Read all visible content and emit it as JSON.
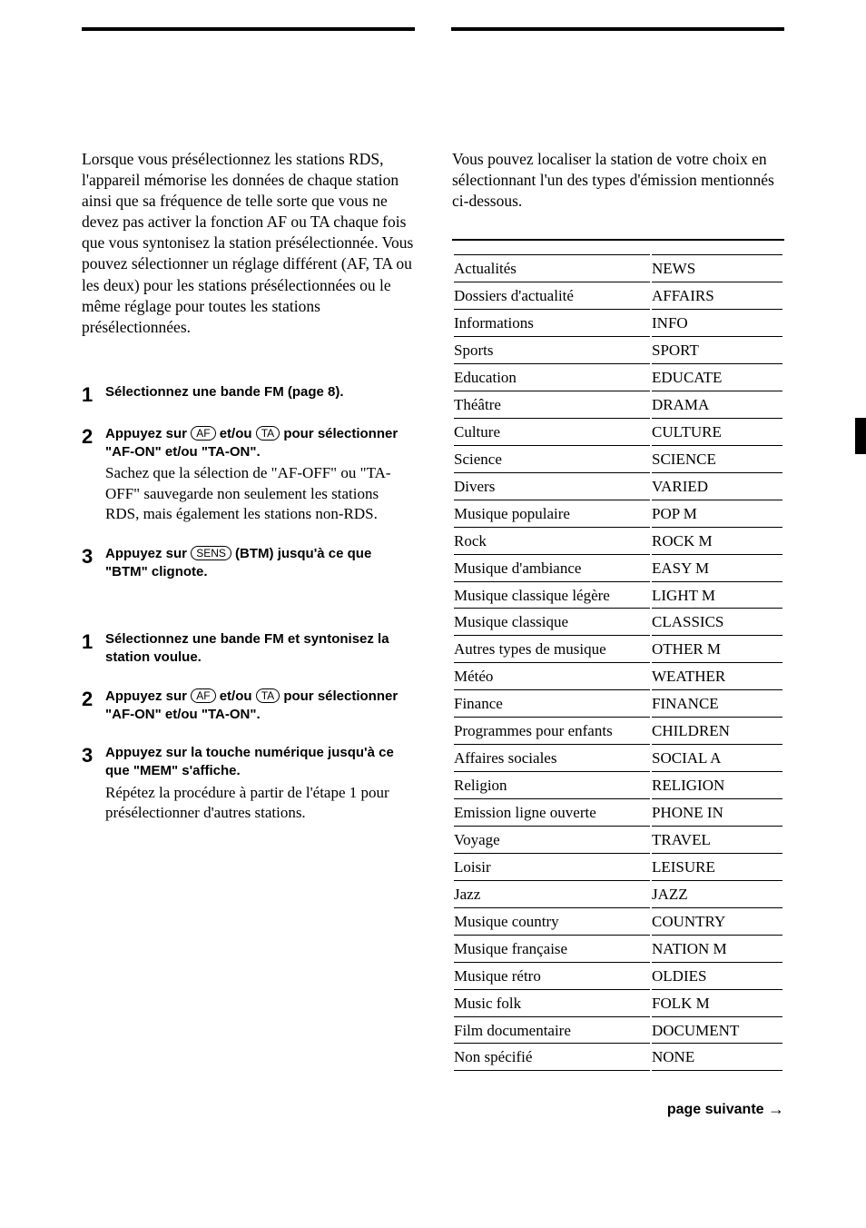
{
  "left": {
    "intro": "Lorsque vous présélectionnez les stations RDS, l'appareil mémorise les données de chaque station ainsi que sa fréquence de telle sorte que vous ne devez pas activer la fonction AF ou TA chaque fois que vous syntonisez la station présélectionnée. Vous pouvez sélectionner un réglage différent (AF, TA ou les deux) pour les stations présélectionnées ou le même réglage pour toutes les stations présélectionnées.",
    "procA": {
      "step1": {
        "bold": "Sélectionnez une bande FM (page 8)."
      },
      "step2": {
        "bold_before": "Appuyez sur ",
        "key1": "AF",
        "bold_mid": " et/ou ",
        "key2": "TA",
        "bold_after": " pour sélectionner \"AF-ON\" et/ou \"TA-ON\".",
        "normal": "Sachez que la sélection de \"AF-OFF\" ou \"TA-OFF\" sauvegarde non seulement les stations RDS, mais également les stations non-RDS."
      },
      "step3": {
        "bold_before": "Appuyez sur ",
        "key1": "SENS",
        "bold_after": " (BTM) jusqu'à ce que \"BTM\" clignote."
      }
    },
    "procB": {
      "step1": {
        "bold": "Sélectionnez une bande FM et syntonisez la station voulue."
      },
      "step2": {
        "bold_before": "Appuyez sur ",
        "key1": "AF",
        "bold_mid": " et/ou ",
        "key2": "TA",
        "bold_after": " pour sélectionner \"AF-ON\" et/ou \"TA-ON\"."
      },
      "step3": {
        "bold": "Appuyez sur la touche numérique jusqu'à ce que \"MEM\" s'affiche.",
        "normal": "Répétez la procédure à partir de l'étape 1 pour présélectionner d'autres stations."
      }
    }
  },
  "right": {
    "intro": "Vous pouvez localiser la station de votre choix en sélectionnant l'un des types d'émission mentionnés ci-dessous.",
    "rows": [
      {
        "label": "Actualités",
        "code": "NEWS"
      },
      {
        "label": "Dossiers d'actualité",
        "code": "AFFAIRS"
      },
      {
        "label": "Informations",
        "code": "INFO"
      },
      {
        "label": "Sports",
        "code": "SPORT"
      },
      {
        "label": "Education",
        "code": "EDUCATE"
      },
      {
        "label": "Théâtre",
        "code": "DRAMA"
      },
      {
        "label": "Culture",
        "code": "CULTURE"
      },
      {
        "label": "Science",
        "code": "SCIENCE"
      },
      {
        "label": "Divers",
        "code": "VARIED"
      },
      {
        "label": "Musique populaire",
        "code": "POP M"
      },
      {
        "label": "Rock",
        "code": "ROCK M"
      },
      {
        "label": "Musique d'ambiance",
        "code": "EASY M"
      },
      {
        "label": "Musique classique légère",
        "code": "LIGHT M"
      },
      {
        "label": "Musique classique",
        "code": "CLASSICS"
      },
      {
        "label": "Autres types de musique",
        "code": "OTHER M"
      },
      {
        "label": "Météo",
        "code": "WEATHER"
      },
      {
        "label": "Finance",
        "code": "FINANCE"
      },
      {
        "label": "Programmes pour enfants",
        "code": "CHILDREN"
      },
      {
        "label": "Affaires sociales",
        "code": "SOCIAL A"
      },
      {
        "label": "Religion",
        "code": "RELIGION"
      },
      {
        "label": "Emission ligne ouverte",
        "code": "PHONE IN"
      },
      {
        "label": "Voyage",
        "code": "TRAVEL"
      },
      {
        "label": "Loisir",
        "code": "LEISURE"
      },
      {
        "label": "Jazz",
        "code": "JAZZ"
      },
      {
        "label": "Musique country",
        "code": "COUNTRY"
      },
      {
        "label": "Musique française",
        "code": "NATION M"
      },
      {
        "label": "Musique rétro",
        "code": "OLDIES"
      },
      {
        "label": "Music folk",
        "code": "FOLK M"
      },
      {
        "label": "Film documentaire",
        "code": "DOCUMENT"
      },
      {
        "label": "Non spécifié",
        "code": "NONE"
      }
    ]
  },
  "footer": "page suivante",
  "arrow": "→"
}
